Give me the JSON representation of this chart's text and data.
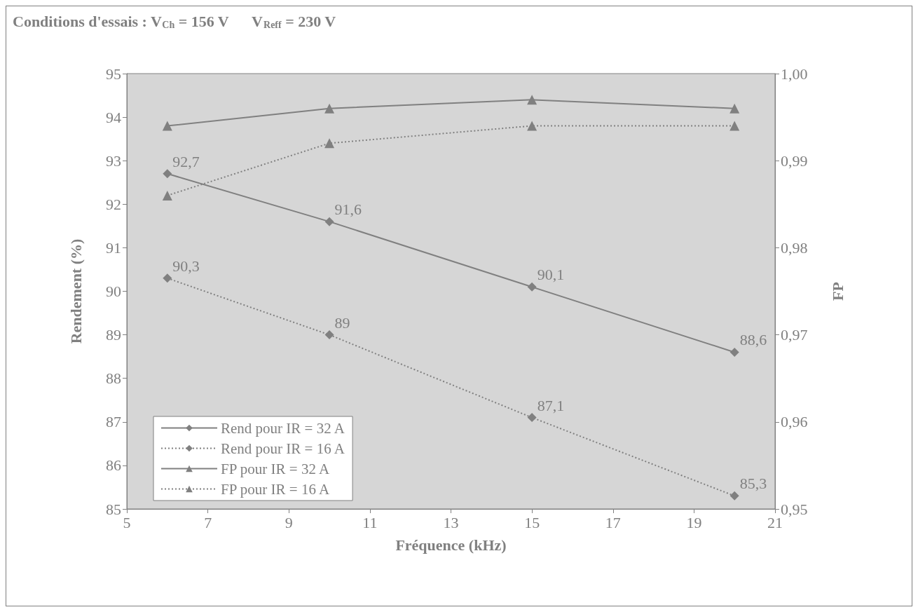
{
  "chart_data": {
    "type": "line",
    "title": "Conditions d'essais : V$_{Ch}$ = 156 V      V$_{Reff}$ = 230 V",
    "xlabel": "Fréquence (kHz)",
    "ylabel": "Rendement (%)",
    "y2label": "FP",
    "x": [
      6,
      10,
      15,
      20
    ],
    "series": [
      {
        "name": "Rend pour IR = 32 A",
        "color": "#808080",
        "values": [
          92.7,
          91.6,
          90.1,
          88.6
        ],
        "marker": "diamond",
        "line_style": "solid",
        "value_labels": [
          "92,7",
          "91,6",
          "90,1",
          "88,6"
        ]
      },
      {
        "name": "Rend pour IR = 16 A",
        "color": "#808080",
        "values": [
          90.3,
          89,
          87.1,
          85.3
        ],
        "marker": "diamond",
        "line_style": "dotted",
        "value_labels": [
          "90,3",
          "89",
          "87,1",
          "85,3"
        ]
      },
      {
        "name": "FP pour IR = 32 A",
        "color": "#808080",
        "values": [
          0.994,
          0.996,
          0.997,
          0.996
        ],
        "marker": "triangle",
        "line_style": "solid",
        "axis": "y2"
      },
      {
        "name": "FP pour IR = 16 A",
        "color": "#808080",
        "values": [
          0.986,
          0.992,
          0.994,
          0.994
        ],
        "marker": "triangle",
        "line_style": "dotted",
        "axis": "y2"
      }
    ],
    "xlim": [
      5,
      21
    ],
    "xticks": [
      5,
      7,
      9,
      11,
      13,
      15,
      17,
      19,
      21
    ],
    "ylim": [
      85,
      95
    ],
    "yticks": [
      85,
      86,
      87,
      88,
      89,
      90,
      91,
      92,
      93,
      94,
      95
    ],
    "y2lim": [
      0.95,
      1
    ],
    "y2ticks": [
      {
        "value": 0.95,
        "label": "0,95"
      },
      {
        "value": 0.96,
        "label": "0,96"
      },
      {
        "value": 0.97,
        "label": "0,97"
      },
      {
        "value": 0.98,
        "label": "0,98"
      },
      {
        "value": 0.99,
        "label": "0,99"
      },
      {
        "value": 1,
        "label": "1,00"
      }
    ],
    "grid": false,
    "legend": "bottom left"
  }
}
